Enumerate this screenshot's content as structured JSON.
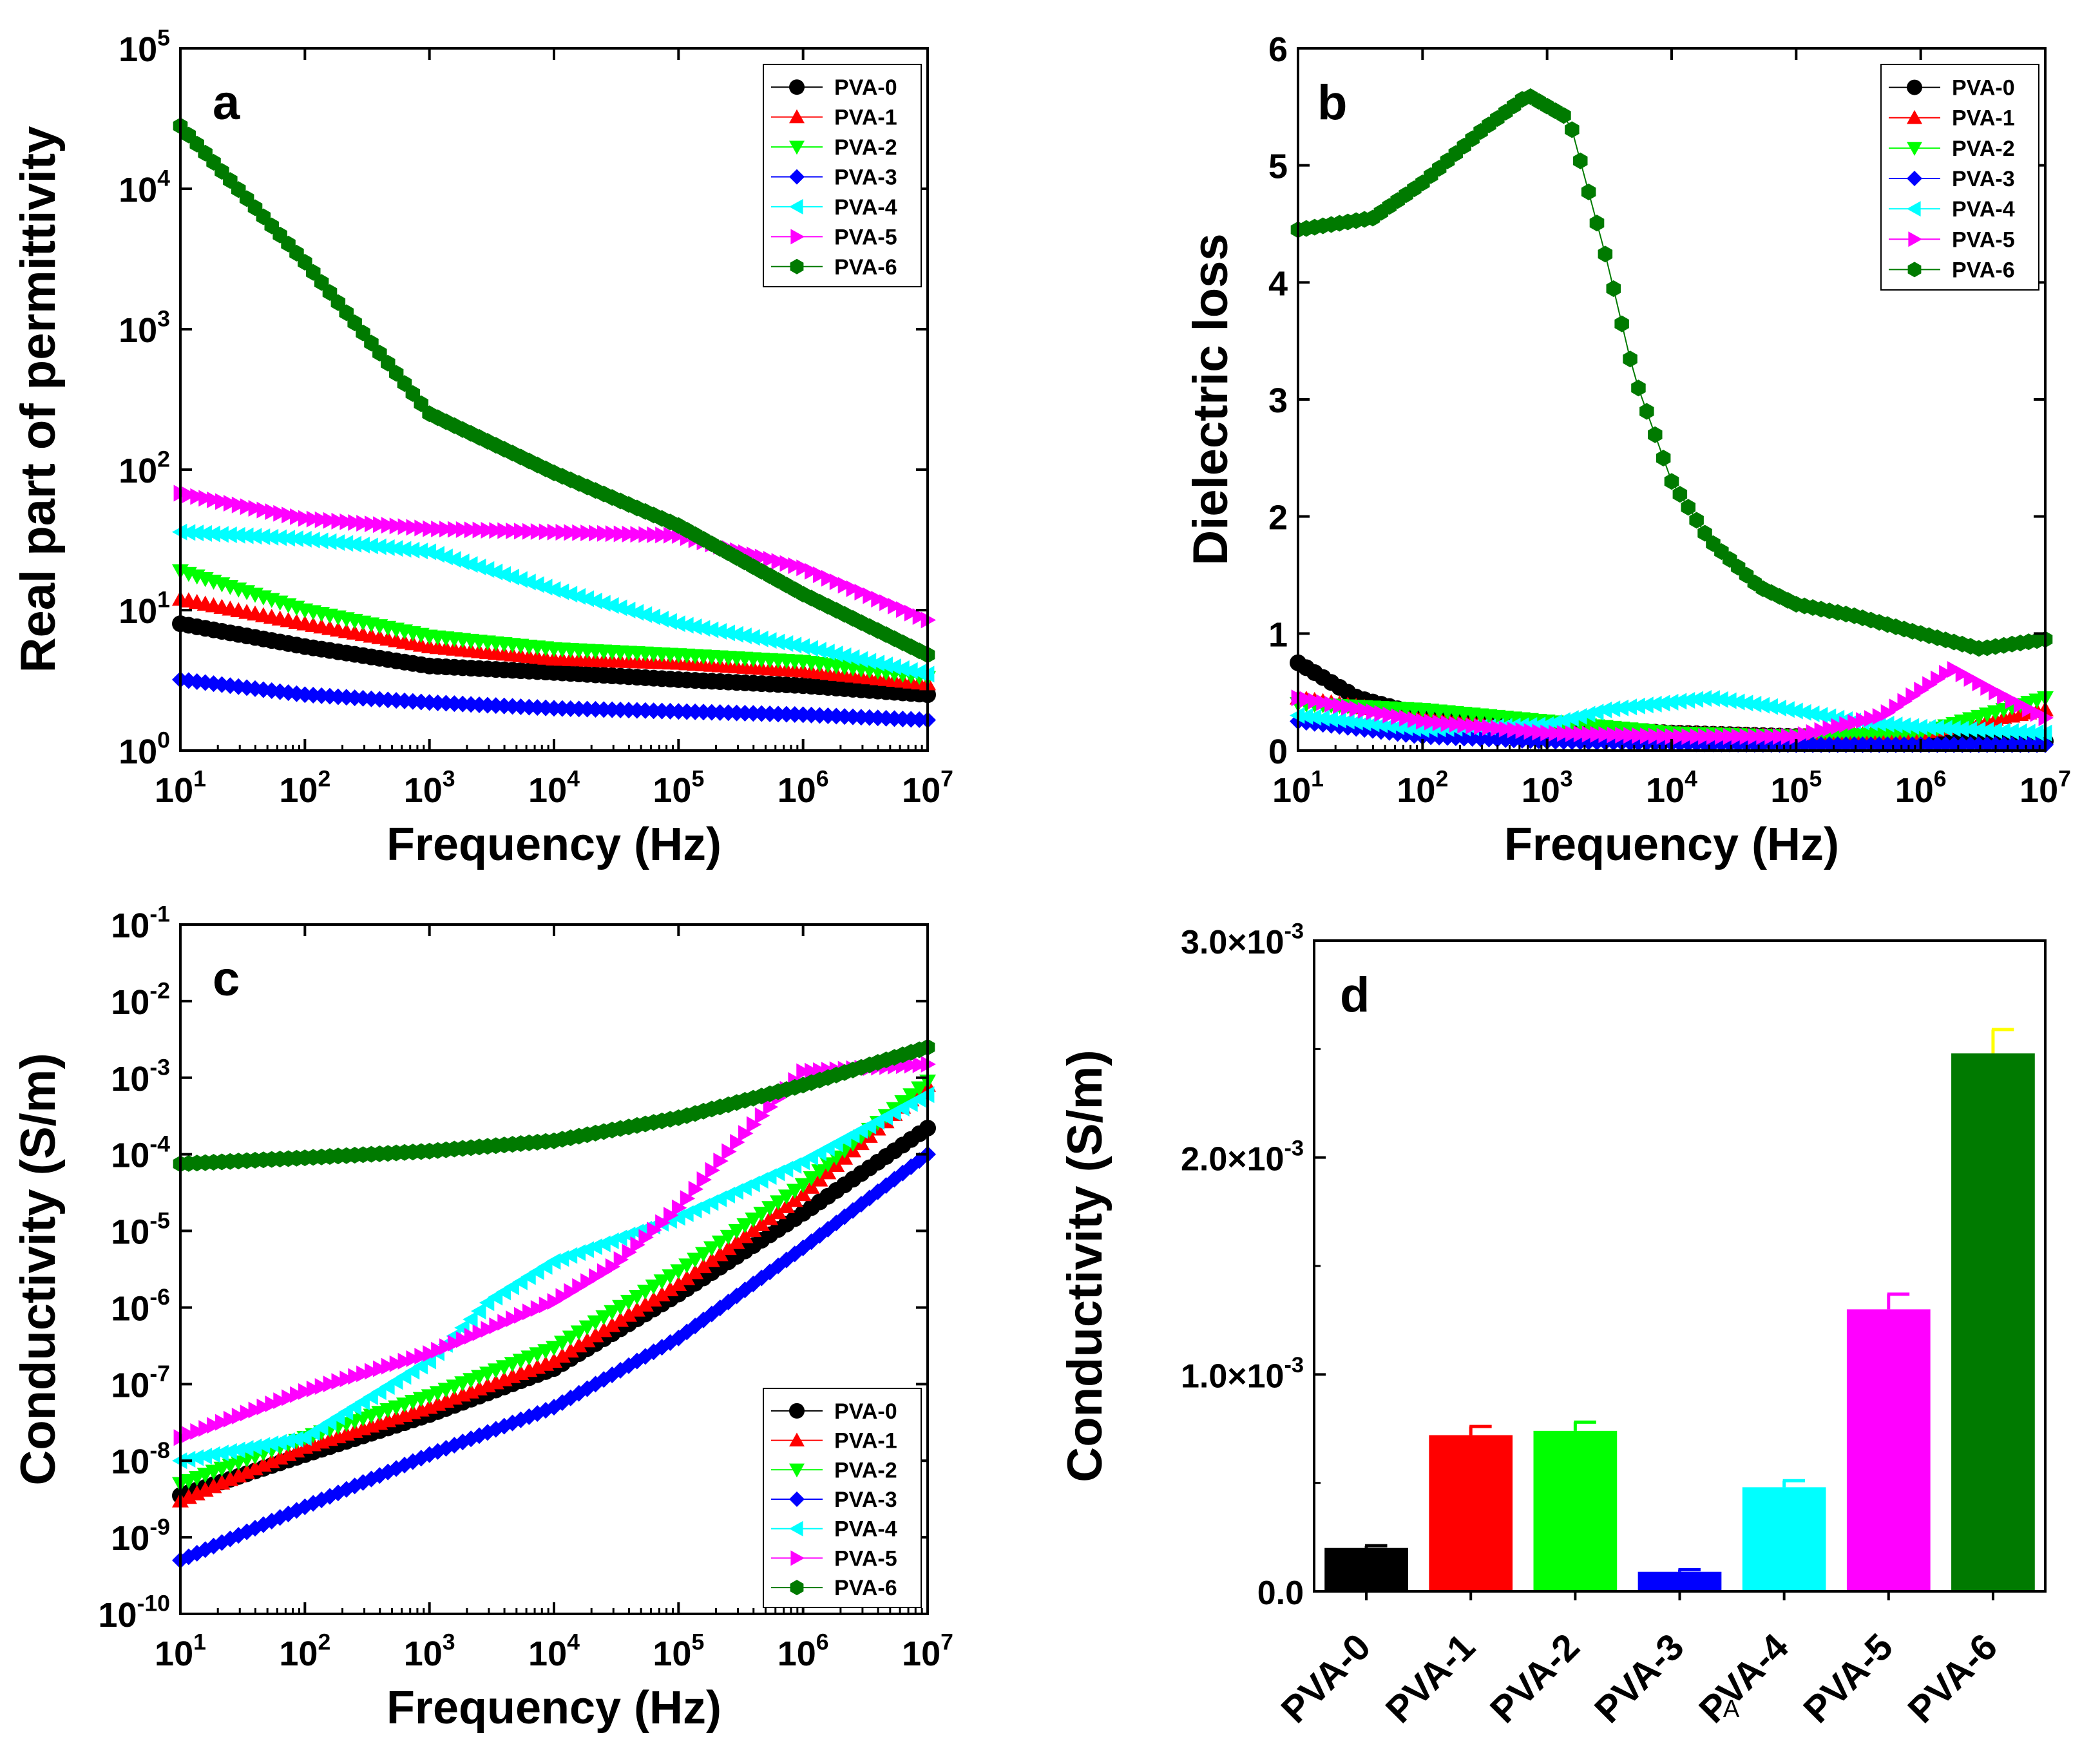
{
  "chart_data": [
    {
      "panel": "a",
      "type": "scatter",
      "xlabel": "Frequency (Hz)",
      "ylabel": "Real part of permittivity",
      "xscale": "log",
      "yscale": "log",
      "xlim": [
        10,
        10000000
      ],
      "ylim": [
        1,
        100000
      ],
      "xticks": [
        {
          "base": "10",
          "exp": "1"
        },
        {
          "base": "10",
          "exp": "2"
        },
        {
          "base": "10",
          "exp": "3"
        },
        {
          "base": "10",
          "exp": "4"
        },
        {
          "base": "10",
          "exp": "5"
        },
        {
          "base": "10",
          "exp": "6"
        },
        {
          "base": "10",
          "exp": "7"
        }
      ],
      "yticks": [
        {
          "base": "10",
          "exp": "0"
        },
        {
          "base": "10",
          "exp": "1"
        },
        {
          "base": "10",
          "exp": "2"
        },
        {
          "base": "10",
          "exp": "3"
        },
        {
          "base": "10",
          "exp": "4"
        },
        {
          "base": "10",
          "exp": "5"
        }
      ],
      "legend_position": "top-right",
      "series": [
        {
          "name": "PVA-0",
          "color": "#000000",
          "marker": "circle",
          "x": [
            10,
            100,
            1000,
            10000,
            100000,
            1000000,
            10000000
          ],
          "y": [
            8,
            5.5,
            4,
            3.6,
            3.2,
            2.9,
            2.5
          ]
        },
        {
          "name": "PVA-1",
          "color": "#ff0000",
          "marker": "triangle-up",
          "x": [
            10,
            100,
            1000,
            10000,
            100000,
            1000000,
            10000000
          ],
          "y": [
            12,
            8,
            5.5,
            4.5,
            4.2,
            3.7,
            3.0
          ]
        },
        {
          "name": "PVA-2",
          "color": "#00ff00",
          "marker": "triangle-down",
          "x": [
            10,
            100,
            1000,
            10000,
            100000,
            1000000,
            10000000
          ],
          "y": [
            19,
            10,
            6.5,
            5.3,
            4.8,
            4.3,
            3.3
          ]
        },
        {
          "name": "PVA-3",
          "color": "#0000ff",
          "marker": "diamond",
          "x": [
            10,
            100,
            1000,
            10000,
            100000,
            1000000,
            10000000
          ],
          "y": [
            3.2,
            2.5,
            2.2,
            2.0,
            1.9,
            1.8,
            1.65
          ]
        },
        {
          "name": "PVA-4",
          "color": "#00ffff",
          "marker": "triangle-left",
          "x": [
            10,
            100,
            1000,
            10000,
            100000,
            1000000,
            10000000
          ],
          "y": [
            36,
            32,
            26,
            14,
            8,
            5.5,
            3.5
          ]
        },
        {
          "name": "PVA-5",
          "color": "#ff00ff",
          "marker": "triangle-right",
          "x": [
            10,
            100,
            1000,
            10000,
            100000,
            1000000,
            10000000
          ],
          "y": [
            68,
            45,
            38,
            36,
            34,
            20,
            8.5
          ]
        },
        {
          "name": "PVA-6",
          "color": "#007a00",
          "marker": "hexagon",
          "x": [
            10,
            100,
            1000,
            10000,
            100000,
            1000000,
            10000000
          ],
          "y": [
            28000,
            3000,
            250,
            95,
            40,
            13,
            4.8
          ]
        }
      ]
    },
    {
      "panel": "b",
      "type": "scatter",
      "xlabel": "Frequency (Hz)",
      "ylabel": "Dielectric loss",
      "xscale": "log",
      "yscale": "linear",
      "xlim": [
        10,
        10000000
      ],
      "ylim": [
        0,
        6
      ],
      "xticks": [
        {
          "base": "10",
          "exp": "1"
        },
        {
          "base": "10",
          "exp": "2"
        },
        {
          "base": "10",
          "exp": "3"
        },
        {
          "base": "10",
          "exp": "4"
        },
        {
          "base": "10",
          "exp": "5"
        },
        {
          "base": "10",
          "exp": "6"
        },
        {
          "base": "10",
          "exp": "7"
        }
      ],
      "yticks": [
        "0",
        "1",
        "2",
        "3",
        "4",
        "5",
        "6"
      ],
      "legend_position": "top-right",
      "series": [
        {
          "name": "PVA-0",
          "color": "#000000",
          "marker": "circle",
          "x": [
            10,
            30,
            100,
            1000,
            10000,
            100000,
            1000000,
            10000000
          ],
          "y": [
            0.75,
            0.45,
            0.3,
            0.2,
            0.15,
            0.12,
            0.1,
            0.08
          ]
        },
        {
          "name": "PVA-1",
          "color": "#ff0000",
          "marker": "triangle-up",
          "x": [
            10,
            100,
            1000,
            10000,
            100000,
            1000000,
            10000000
          ],
          "y": [
            0.45,
            0.3,
            0.2,
            0.15,
            0.12,
            0.15,
            0.35
          ]
        },
        {
          "name": "PVA-2",
          "color": "#00ff00",
          "marker": "triangle-down",
          "x": [
            10,
            100,
            1000,
            10000,
            100000,
            1000000,
            10000000
          ],
          "y": [
            0.4,
            0.35,
            0.25,
            0.15,
            0.12,
            0.15,
            0.45
          ]
        },
        {
          "name": "PVA-3",
          "color": "#0000ff",
          "marker": "diamond",
          "x": [
            10,
            100,
            1000,
            10000,
            100000,
            1000000,
            10000000
          ],
          "y": [
            0.25,
            0.12,
            0.08,
            0.06,
            0.05,
            0.05,
            0.05
          ]
        },
        {
          "name": "PVA-4",
          "color": "#00ffff",
          "marker": "triangle-left",
          "x": [
            10,
            100,
            1000,
            3000,
            20000,
            60000,
            300000,
            1000000,
            10000000
          ],
          "y": [
            0.3,
            0.18,
            0.22,
            0.35,
            0.45,
            0.38,
            0.25,
            0.2,
            0.15
          ]
        },
        {
          "name": "PVA-5",
          "color": "#ff00ff",
          "marker": "triangle-right",
          "x": [
            10,
            100,
            1000,
            10000,
            100000,
            500000,
            1800000,
            4000000,
            10000000
          ],
          "y": [
            0.45,
            0.25,
            0.15,
            0.12,
            0.12,
            0.3,
            0.7,
            0.5,
            0.28
          ]
        },
        {
          "name": "PVA-6",
          "color": "#007a00",
          "marker": "hexagon",
          "x": [
            10,
            40,
            100,
            300,
            700,
            1500,
            3000,
            5000,
            10000,
            20000,
            50000,
            100000,
            300000,
            1000000,
            3000000,
            10000000
          ],
          "y": [
            4.45,
            4.55,
            4.85,
            5.3,
            5.6,
            5.4,
            4.2,
            3.2,
            2.3,
            1.8,
            1.4,
            1.25,
            1.15,
            1.0,
            0.87,
            0.95
          ]
        }
      ]
    },
    {
      "panel": "c",
      "type": "scatter",
      "xlabel": "Frequency (Hz)",
      "ylabel": "Conductivity (S/m)",
      "xscale": "log",
      "yscale": "log",
      "xlim": [
        10,
        10000000
      ],
      "ylim": [
        1e-10,
        0.1
      ],
      "xticks": [
        {
          "base": "10",
          "exp": "1"
        },
        {
          "base": "10",
          "exp": "2"
        },
        {
          "base": "10",
          "exp": "3"
        },
        {
          "base": "10",
          "exp": "4"
        },
        {
          "base": "10",
          "exp": "5"
        },
        {
          "base": "10",
          "exp": "6"
        },
        {
          "base": "10",
          "exp": "7"
        }
      ],
      "yticks": [
        {
          "base": "10",
          "exp": "-10"
        },
        {
          "base": "10",
          "exp": "-9"
        },
        {
          "base": "10",
          "exp": "-8"
        },
        {
          "base": "10",
          "exp": "-7"
        },
        {
          "base": "10",
          "exp": "-6"
        },
        {
          "base": "10",
          "exp": "-5"
        },
        {
          "base": "10",
          "exp": "-4"
        },
        {
          "base": "10",
          "exp": "-3"
        },
        {
          "base": "10",
          "exp": "-2"
        },
        {
          "base": "10",
          "exp": "-1"
        }
      ],
      "legend_position": "bottom-right",
      "series": [
        {
          "name": "PVA-0",
          "color": "#000000",
          "marker": "circle",
          "x": [
            10,
            100,
            1000,
            10000,
            100000,
            1000000,
            10000000
          ],
          "y": [
            3.5e-09,
            1.2e-08,
            4e-08,
            1.6e-07,
            1.5e-06,
            1.7e-05,
            0.00022
          ]
        },
        {
          "name": "PVA-1",
          "color": "#ff0000",
          "marker": "triangle-up",
          "x": [
            10,
            100,
            1000,
            10000,
            100000,
            1000000,
            10000000
          ],
          "y": [
            3e-09,
            1.5e-08,
            5e-08,
            2e-07,
            2e-06,
            3e-05,
            0.0008
          ]
        },
        {
          "name": "PVA-2",
          "color": "#00ff00",
          "marker": "triangle-down",
          "x": [
            10,
            100,
            1000,
            10000,
            100000,
            1000000,
            10000000
          ],
          "y": [
            5e-09,
            2e-08,
            7e-08,
            3e-07,
            3e-06,
            4e-05,
            0.0009
          ]
        },
        {
          "name": "PVA-3",
          "color": "#0000ff",
          "marker": "diamond",
          "x": [
            10,
            100,
            1000,
            10000,
            100000,
            1000000,
            10000000
          ],
          "y": [
            5e-10,
            2.5e-09,
            1.2e-08,
            5e-08,
            4e-07,
            6e-06,
            0.0001
          ]
        },
        {
          "name": "PVA-4",
          "color": "#00ffff",
          "marker": "triangle-left",
          "x": [
            10,
            100,
            1000,
            3000,
            10000,
            100000,
            1000000,
            10000000
          ],
          "y": [
            1e-08,
            2e-08,
            2e-07,
            1.2e-06,
            4e-06,
            1.5e-05,
            8e-05,
            0.0006
          ]
        },
        {
          "name": "PVA-5",
          "color": "#ff00ff",
          "marker": "triangle-right",
          "x": [
            10,
            100,
            1000,
            10000,
            30000,
            100000,
            300000,
            1000000,
            10000000
          ],
          "y": [
            2e-08,
            8e-08,
            2.5e-07,
            1.2e-06,
            3.5e-06,
            2e-05,
            0.00015,
            0.0012,
            0.0015
          ]
        },
        {
          "name": "PVA-6",
          "color": "#007a00",
          "marker": "hexagon",
          "x": [
            10,
            100,
            1000,
            10000,
            100000,
            1000000,
            10000000
          ],
          "y": [
            7.5e-05,
            9e-05,
            0.00011,
            0.00015,
            0.0003,
            0.0008,
            0.0025
          ]
        }
      ]
    },
    {
      "panel": "d",
      "type": "bar",
      "xlabel": "",
      "ylabel": "Conductivity (S/m)",
      "ylim": [
        0,
        0.003
      ],
      "yticks": [
        {
          "base": "0.0",
          "exp": ""
        },
        {
          "base": "1.0×10",
          "exp": "-3"
        },
        {
          "base": "2.0×10",
          "exp": "-3"
        },
        {
          "base": "3.0×10",
          "exp": "-3"
        }
      ],
      "categories": [
        "PVA-0",
        "PVA-1",
        "PVA-2",
        "PVA-3",
        "PVA-4",
        "PVA-5",
        "PVA-6"
      ],
      "values": [
        0.0002,
        0.00072,
        0.00074,
        9e-05,
        0.00048,
        0.0013,
        0.00248
      ],
      "errors": [
        1e-05,
        4e-05,
        4e-05,
        1e-05,
        3e-05,
        7e-05,
        0.00011
      ],
      "colors": [
        "#000000",
        "#ff0000",
        "#00ff00",
        "#0000ff",
        "#00ffff",
        "#ff00ff",
        "#007a00"
      ],
      "error_colors": [
        "#000000",
        "#ff0000",
        "#00ff00",
        "#0000ff",
        "#00ffff",
        "#ff00ff",
        "#ffff00"
      ],
      "stray_mark": "A"
    }
  ],
  "panel_letters": {
    "a": "a",
    "b": "b",
    "c": "c",
    "d": "d"
  }
}
